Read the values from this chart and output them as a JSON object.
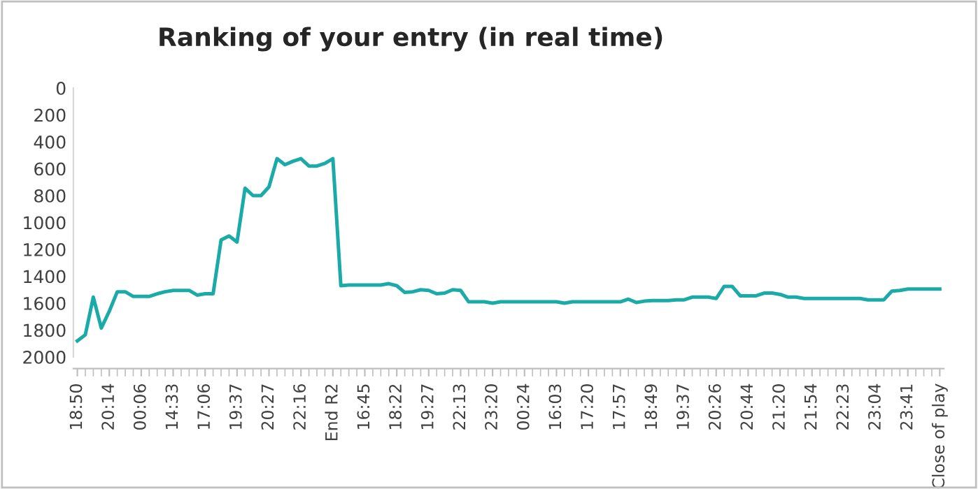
{
  "chart_data": {
    "type": "line",
    "title": "Ranking of your entry (in real time)",
    "categories": [
      "18:50",
      null,
      null,
      null,
      "20:14",
      null,
      null,
      null,
      "00:06",
      null,
      null,
      null,
      "14:33",
      null,
      null,
      null,
      "17:06",
      null,
      null,
      null,
      "19:37",
      null,
      null,
      null,
      "20:27",
      null,
      null,
      null,
      "22:16",
      null,
      null,
      null,
      "End R2",
      null,
      null,
      null,
      "16:45",
      null,
      null,
      null,
      "18:22",
      null,
      null,
      null,
      "19:27",
      null,
      null,
      null,
      "22:13",
      null,
      null,
      null,
      "23:20",
      null,
      null,
      null,
      "00:24",
      null,
      null,
      null,
      "16:03",
      null,
      null,
      null,
      "17:20",
      null,
      null,
      null,
      "17:57",
      null,
      null,
      null,
      "18:49",
      null,
      null,
      null,
      "19:37",
      null,
      null,
      null,
      "20:26",
      null,
      null,
      null,
      "20:44",
      null,
      null,
      null,
      "21:20",
      null,
      null,
      null,
      "21:54",
      null,
      null,
      null,
      "22:23",
      null,
      null,
      null,
      "23:04",
      null,
      null,
      null,
      "23:41",
      null,
      null,
      null,
      "Close of play"
    ],
    "series": [
      {
        "color": "#1aaba8",
        "values": [
          1880,
          1835,
          1555,
          1785,
          1660,
          1515,
          1515,
          1550,
          1550,
          1550,
          1530,
          1515,
          1505,
          1505,
          1505,
          1540,
          1530,
          1530,
          1130,
          1100,
          1145,
          745,
          800,
          800,
          735,
          525,
          570,
          545,
          525,
          580,
          580,
          560,
          525,
          1470,
          1465,
          1465,
          1465,
          1465,
          1465,
          1455,
          1470,
          1520,
          1515,
          1500,
          1505,
          1530,
          1525,
          1500,
          1505,
          1590,
          1590,
          1590,
          1600,
          1590,
          1590,
          1590,
          1590,
          1590,
          1590,
          1590,
          1590,
          1600,
          1590,
          1590,
          1590,
          1590,
          1590,
          1590,
          1590,
          1570,
          1595,
          1585,
          1580,
          1580,
          1580,
          1575,
          1575,
          1555,
          1555,
          1555,
          1565,
          1475,
          1475,
          1545,
          1545,
          1545,
          1525,
          1525,
          1535,
          1555,
          1555,
          1565,
          1565,
          1565,
          1565,
          1565,
          1565,
          1565,
          1565,
          1575,
          1575,
          1575,
          1510,
          1505,
          1495,
          1495,
          1495,
          1495,
          1495
        ]
      }
    ],
    "ylim": [
      2000,
      0
    ],
    "yticks": [
      0,
      200,
      400,
      600,
      800,
      1000,
      1200,
      1400,
      1600,
      1800,
      2000
    ],
    "grid": false,
    "legend": false,
    "marker": "none",
    "line_style": "solid"
  }
}
